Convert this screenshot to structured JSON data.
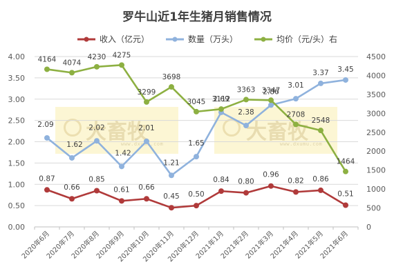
{
  "chart_data": {
    "type": "line",
    "title": "罗牛山近1年生猪月销售情况",
    "categories": [
      "2020年6月",
      "2020年7月",
      "2020年8月",
      "2020年9月",
      "2020年10月",
      "2020年11月",
      "2020年12月",
      "2021年1月",
      "2021年2月",
      "2021年3月",
      "2021年4月",
      "2021年5月",
      "2021年6月"
    ],
    "y_left": {
      "range": [
        0,
        4
      ],
      "ticks": [
        "0.00",
        "0.50",
        "1.00",
        "1.50",
        "2.00",
        "2.50",
        "3.00",
        "3.50",
        "4.00"
      ]
    },
    "y_right": {
      "range": [
        0,
        4500
      ],
      "ticks": [
        "0",
        "500",
        "1000",
        "1500",
        "2000",
        "2500",
        "3000",
        "3500",
        "4000",
        "4500"
      ]
    },
    "grid": true,
    "legend_position": "top",
    "series": [
      {
        "name": "收入（亿元）",
        "axis": "left",
        "color": "#b03a3a",
        "values": [
          0.87,
          0.66,
          0.85,
          0.61,
          0.66,
          0.45,
          0.5,
          0.84,
          0.8,
          0.96,
          0.82,
          0.86,
          0.51
        ],
        "labels": [
          "0.87",
          "0.66",
          "0.85",
          "0.61",
          "0.66",
          "0.45",
          "0.50",
          "0.84",
          "0.80",
          "0.96",
          "0.82",
          "0.86",
          "0.51"
        ]
      },
      {
        "name": "数量（万头）",
        "axis": "left",
        "color": "#8fb2dd",
        "values": [
          2.09,
          1.62,
          2.02,
          1.42,
          2.01,
          1.21,
          1.65,
          2.69,
          2.38,
          2.86,
          3.01,
          3.37,
          3.45
        ],
        "labels": [
          "2.09",
          "1.62",
          "2.02",
          "1.42",
          "2.01",
          "1.21",
          "1.65",
          "2.69",
          "2.38",
          "2.86",
          "3.01",
          "3.37",
          "3.45"
        ]
      },
      {
        "name": "均价（元/头）右",
        "axis": "right",
        "color": "#8db042",
        "values": [
          4164,
          4074,
          4230,
          4275,
          3299,
          3698,
          3045,
          3112,
          3363,
          3347,
          2708,
          2548,
          1464
        ],
        "labels": [
          "4164",
          "4074",
          "4230",
          "4275",
          "3299",
          "3698",
          "3045",
          "3112",
          "3363",
          "3347",
          "2708",
          "2548",
          "1464"
        ]
      }
    ]
  },
  "watermark": {
    "text": "大畜牧",
    "url": "www.dxumu.com"
  }
}
